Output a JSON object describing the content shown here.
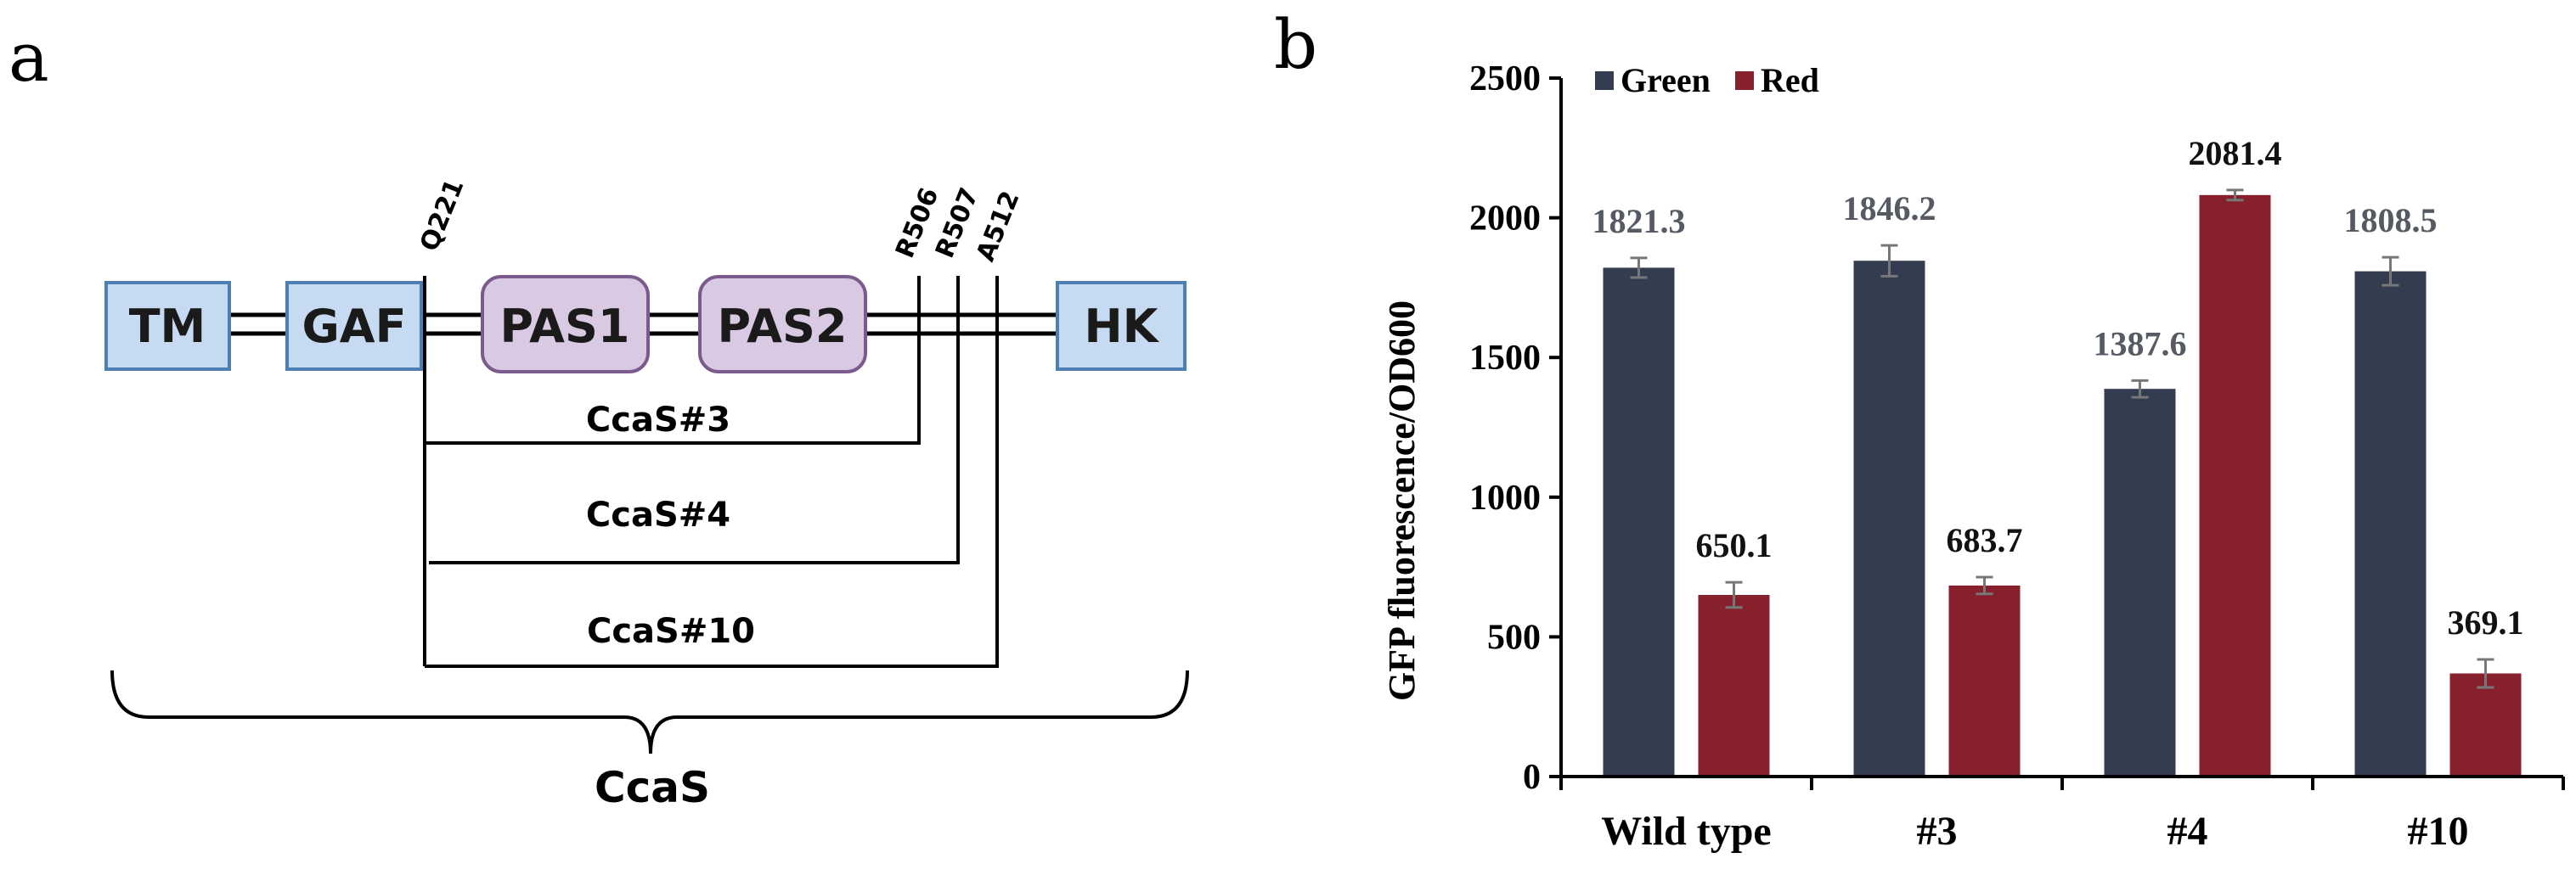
{
  "panels": {
    "a": "a",
    "b": "b"
  },
  "diagram": {
    "domains": {
      "tm": "TM",
      "gaf": "GAF",
      "pas1": "PAS1",
      "pas2": "PAS2",
      "hk": "HK"
    },
    "sites": {
      "q221": "Q221",
      "r506": "R506",
      "r507": "R507",
      "a512": "A512"
    },
    "variants": {
      "v3": "CcaS#3",
      "v4": "CcaS#4",
      "v10": "CcaS#10"
    },
    "brace_label": "CcaS",
    "colors": {
      "box_blue": "#c6dbf1",
      "box_blue_border": "#4f7fb0",
      "box_purple": "#d9c9e3",
      "box_purple_border": "#7a5b8c"
    }
  },
  "chart_data": {
    "type": "bar",
    "categories": [
      "Wild type",
      "#3",
      "#4",
      "#10"
    ],
    "series": [
      {
        "name": "Green",
        "values": [
          1821.3,
          1846.2,
          1387.6,
          1808.5
        ],
        "errors": [
          35,
          55,
          30,
          50
        ],
        "labels": [
          "1821.3",
          "1846.2",
          "1387.6",
          "1808.5"
        ],
        "color": "#333d4f"
      },
      {
        "name": "Red",
        "values": [
          650.1,
          683.7,
          2081.4,
          369.1
        ],
        "errors": [
          45,
          30,
          18,
          50
        ],
        "labels": [
          "650.1",
          "683.7",
          "2081.4",
          "369.1"
        ],
        "color": "#87202d"
      }
    ],
    "ylabel": "GFP fluorescence/OD600",
    "xlabel": "",
    "ylim": [
      0,
      2500
    ],
    "yticks": [
      0,
      500,
      1000,
      1500,
      2000,
      2500
    ],
    "ytick_labels": [
      "0",
      "500",
      "1000",
      "1500",
      "2000",
      "2500"
    ],
    "legend_position": "top-left",
    "grid": false
  }
}
